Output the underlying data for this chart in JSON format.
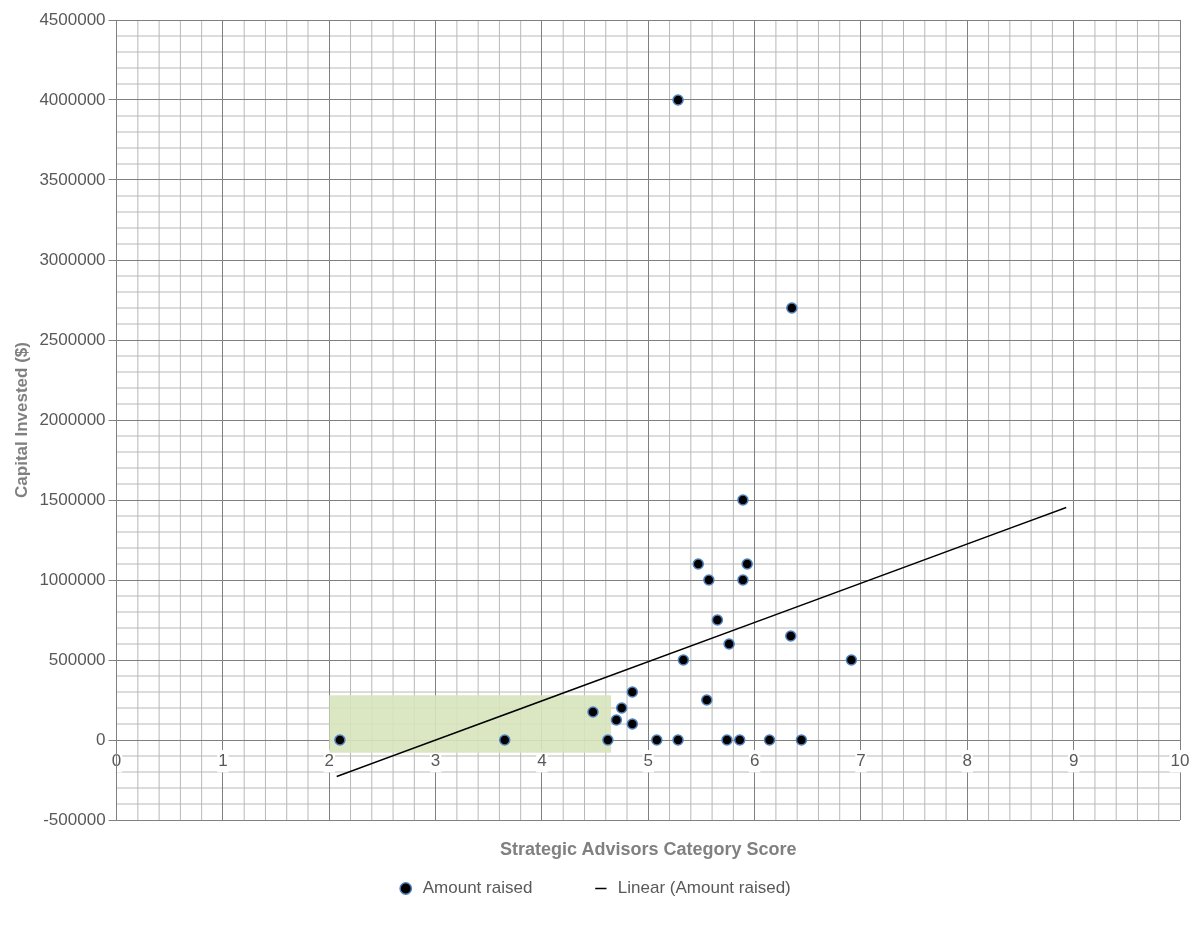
{
  "chart_data": {
    "type": "scatter",
    "xlabel": "Strategic Advisors Category Score",
    "ylabel": "Capital Invested ($)",
    "xlim": [
      0,
      10
    ],
    "xticks": [
      0,
      1,
      2,
      3,
      4,
      5,
      6,
      7,
      8,
      9,
      10
    ],
    "ylim": [
      -500000,
      4500000
    ],
    "yticks": [
      -500000,
      0,
      500000,
      1000000,
      1500000,
      2000000,
      2500000,
      3000000,
      3500000,
      4000000,
      4500000
    ],
    "grid": true,
    "legend": "bottom",
    "marker": "circle",
    "series": [
      {
        "name": "Amount raised",
        "color": "#000000",
        "x": [
          2.1,
          3.65,
          4.62,
          4.48,
          4.7,
          4.75,
          4.85,
          4.85,
          5.08,
          5.28,
          5.33,
          5.28,
          5.47,
          5.57,
          5.55,
          5.65,
          5.76,
          5.74,
          5.86,
          5.89,
          5.89,
          5.93,
          6.14,
          6.34,
          6.35,
          6.44,
          6.91
        ],
        "values": [
          0,
          0,
          0,
          175000,
          125000,
          200000,
          100000,
          300000,
          0,
          0,
          500000,
          4000000,
          1100000,
          1000000,
          250000,
          750000,
          600000,
          0,
          0,
          1000000,
          1500000,
          1100000,
          0,
          650000,
          2700000,
          0,
          500000
        ]
      },
      {
        "name": "Linear (Amount raised)",
        "type": "line",
        "color": "#000000",
        "x": [
          2.07,
          8.93
        ],
        "values": [
          -228000,
          1453000
        ],
        "marker": "none",
        "line_style": "solid"
      }
    ],
    "bands": [
      {
        "axis": "x",
        "from": 2,
        "to": 4.65,
        "color": "#d7e4bd"
      }
    ]
  }
}
